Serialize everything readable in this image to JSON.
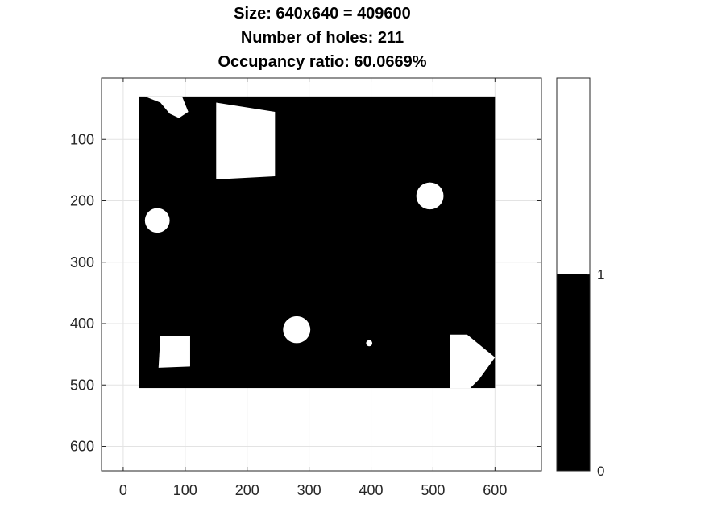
{
  "chart_data": [
    {
      "type": "heatmap",
      "title": [
        "Size: 640x640 = 409600",
        "Number of holes: 211",
        "Occupancy ratio: 60.0669%"
      ],
      "xlim": [
        -35,
        675
      ],
      "ylim": [
        640,
        0
      ],
      "y_reversed": true,
      "xticks": [
        0,
        100,
        200,
        300,
        400,
        500,
        600
      ],
      "yticks": [
        100,
        200,
        300,
        400,
        500,
        600
      ],
      "grid": true,
      "colormap": {
        "0": "#000000",
        "1": "#ffffff"
      },
      "occupied_region": {
        "x": [
          25,
          600
        ],
        "y": [
          30,
          505
        ],
        "value": 0
      },
      "free_regions": [
        {
          "shape": "polygon",
          "points": [
            [
              150,
              40
            ],
            [
              245,
              55
            ],
            [
              245,
              160
            ],
            [
              150,
              165
            ]
          ],
          "value": 1
        },
        {
          "shape": "polygon",
          "points": [
            [
              60,
              420
            ],
            [
              108,
              420
            ],
            [
              108,
              470
            ],
            [
              57,
              472
            ]
          ],
          "value": 1
        },
        {
          "shape": "polygon",
          "points": [
            [
              527,
              418
            ],
            [
              555,
              418
            ],
            [
              600,
              455
            ],
            [
              575,
              490
            ],
            [
              560,
              505
            ],
            [
              527,
              505
            ]
          ],
          "value": 1
        },
        {
          "shape": "polygon",
          "points": [
            [
              35,
              30
            ],
            [
              95,
              30
            ],
            [
              105,
              55
            ],
            [
              90,
              65
            ],
            [
              75,
              58
            ],
            [
              60,
              40
            ]
          ],
          "value": 1
        },
        {
          "shape": "circle",
          "center": [
            495,
            192
          ],
          "radius": 22,
          "value": 1
        },
        {
          "shape": "circle",
          "center": [
            55,
            232
          ],
          "radius": 20,
          "value": 1
        },
        {
          "shape": "circle",
          "center": [
            280,
            410
          ],
          "radius": 22,
          "value": 1
        },
        {
          "shape": "circle",
          "center": [
            397,
            432
          ],
          "radius": 5,
          "value": 1
        }
      ]
    },
    {
      "type": "colorbar",
      "range": [
        0,
        2
      ],
      "segments": [
        {
          "from": 0,
          "to": 1,
          "color": "#000000"
        },
        {
          "from": 1,
          "to": 2,
          "color": "#ffffff"
        }
      ],
      "ticks": [
        0,
        1
      ]
    }
  ]
}
